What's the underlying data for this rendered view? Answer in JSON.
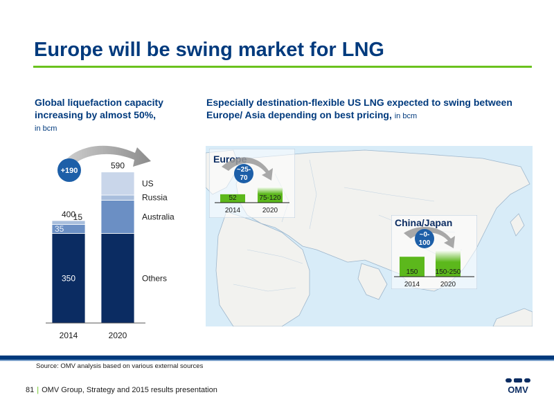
{
  "header": {
    "title": "Europe will be swing market for LNG"
  },
  "left_panel": {
    "heading": "Global liquefaction capacity increasing by almost 50%,",
    "unit": "in bcm"
  },
  "right_panel": {
    "heading": "Especially destination-flexible US LNG expected to swing between Europe/ Asia depending on best pricing,",
    "unit": "in bcm"
  },
  "colors": {
    "navy": "#0b2c62",
    "mid_blue": "#6b8fc4",
    "light_blue": "#a9bedd",
    "pale_blue": "#c9d6ea",
    "green": "#5cb81c",
    "accent_blue": "#1d5fa8",
    "map_sea": "#d8ecf8",
    "map_land": "#f2f2ef"
  },
  "chart_data": [
    {
      "type": "bar",
      "stacked": true,
      "categories": [
        "2014",
        "2020"
      ],
      "series": [
        {
          "name": "Others",
          "values": [
            350,
            350
          ],
          "data_labels": [
            "350",
            ""
          ]
        },
        {
          "name": "Australia",
          "values": [
            35,
            130
          ],
          "data_labels": [
            "35",
            ""
          ]
        },
        {
          "name": "Russia",
          "values": [
            15,
            20
          ],
          "data_labels": [
            "15",
            ""
          ]
        },
        {
          "name": "US",
          "values": [
            0,
            90
          ],
          "data_labels": [
            "",
            ""
          ]
        }
      ],
      "totals": [
        "400",
        "590"
      ],
      "annotation": "+190",
      "ylim": [
        0,
        600
      ]
    },
    {
      "type": "bar",
      "region": "Europe",
      "categories": [
        "2014",
        "2020"
      ],
      "values": [
        52,
        97.5
      ],
      "data_labels": [
        "52",
        "75-120"
      ],
      "annotation": "~25-70"
    },
    {
      "type": "bar",
      "region": "China/Japan",
      "categories": [
        "2014",
        "2020"
      ],
      "values": [
        150,
        200
      ],
      "data_labels": [
        "150",
        "150-250"
      ],
      "annotation": "~0-100"
    }
  ],
  "footer": {
    "source": "Source: OMV analysis based on various external sources",
    "page": "81",
    "text": "OMV Group, Strategy and 2015 results presentation"
  },
  "logo": {
    "text": "OMV"
  }
}
